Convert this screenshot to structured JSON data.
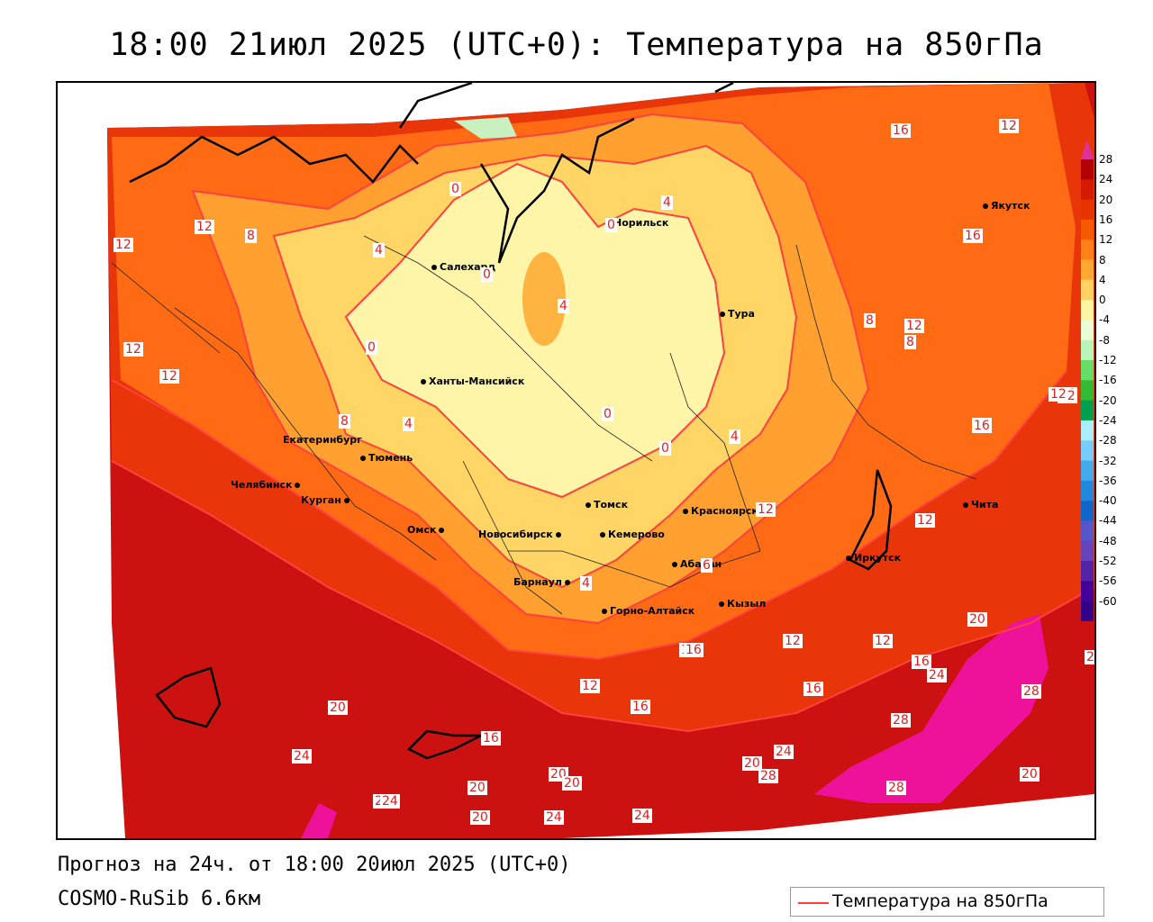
{
  "title": "18:00 21июл 2025 (UTC+0): Температура на 850гПа",
  "footer": {
    "forecast": "Прогноз на 24ч. от 18:00 20июл 2025 (UTC+0)",
    "model": "COSMO-RuSib 6.6км"
  },
  "legend": {
    "label": "Температура на 850гПа",
    "line_color": "#ff3b3b"
  },
  "colorbar": {
    "levels": [
      "28",
      "24",
      "20",
      "16",
      "12",
      "8",
      "4",
      "0",
      "-4",
      "-8",
      "-12",
      "-16",
      "-20",
      "-24",
      "-28",
      "-32",
      "-36",
      "-40",
      "-44",
      "-48",
      "-52",
      "-56",
      "-60"
    ],
    "colors": [
      "#b30000",
      "#d41a00",
      "#e63300",
      "#f55a00",
      "#ff7f1a",
      "#ffa833",
      "#ffd266",
      "#fff5a3",
      "#e8ffd8",
      "#b8f5b8",
      "#66dd66",
      "#33bb33",
      "#00a050",
      "#aaeeff",
      "#77ccff",
      "#44aaee",
      "#2288dd",
      "#1166cc",
      "#5555cc",
      "#6644bb",
      "#5522aa",
      "#440099",
      "#330088"
    ],
    "top_color": "#dd3399",
    "bottom_color": "#8833cc"
  },
  "cities": [
    {
      "name": "Норильск"
    },
    {
      "name": "Якутск"
    },
    {
      "name": "Салехард"
    },
    {
      "name": "Тура"
    },
    {
      "name": "Ханты-Мансийск"
    },
    {
      "name": "Екатеринбург"
    },
    {
      "name": "Тюмень"
    },
    {
      "name": "Челябинск"
    },
    {
      "name": "Курган"
    },
    {
      "name": "Омск"
    },
    {
      "name": "Томск"
    },
    {
      "name": "Красноярск"
    },
    {
      "name": "Чита"
    },
    {
      "name": "Новосибирск"
    },
    {
      "name": "Кемерово"
    },
    {
      "name": "Абакан"
    },
    {
      "name": "Иркутск"
    },
    {
      "name": "Барнаул"
    },
    {
      "name": "Кызыл"
    },
    {
      "name": "Горно-Алтайск"
    }
  ],
  "contour_labels": [
    "16",
    "12",
    "12",
    "12",
    "16",
    "4",
    "0",
    "0",
    "8",
    "4",
    "0",
    "4",
    "12",
    "8",
    "12",
    "12",
    "0",
    "16",
    "8",
    "16",
    "4",
    "0",
    "0",
    "4",
    "8",
    "12",
    "12",
    "16",
    "12",
    "6",
    "4",
    "12",
    "12",
    "12",
    "20",
    "16",
    "12",
    "16",
    "12",
    "16",
    "24",
    "20",
    "16",
    "20",
    "28",
    "28",
    "16",
    "24",
    "20",
    "24",
    "28",
    "28",
    "24",
    "20",
    "20",
    "24",
    "24",
    "20",
    "20",
    "24",
    "2"
  ]
}
